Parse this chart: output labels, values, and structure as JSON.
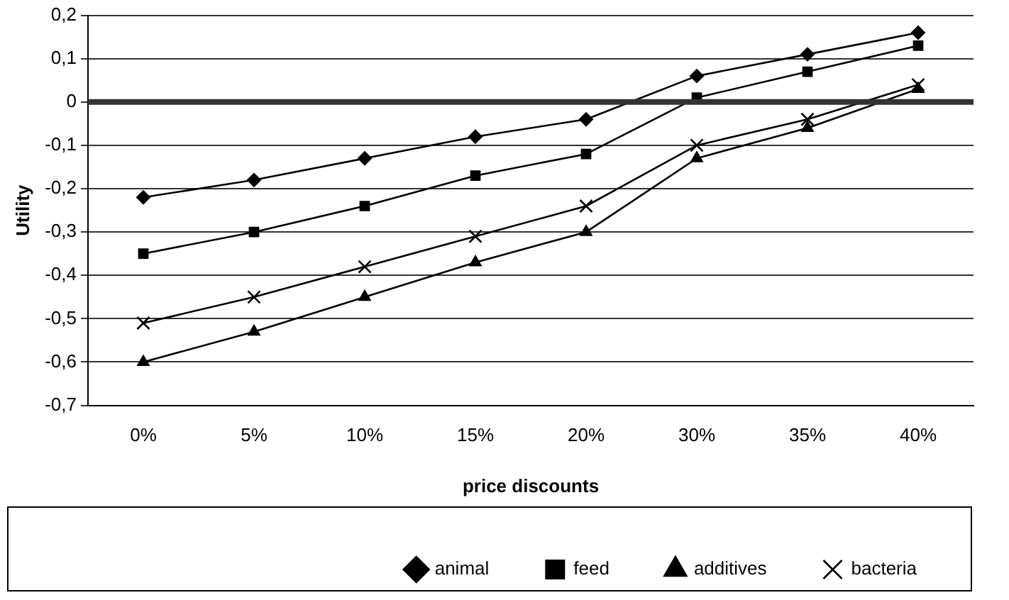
{
  "chart_data": {
    "type": "line",
    "xlabel": "price discounts",
    "ylabel": "Utility",
    "categories": [
      "0%",
      "5%",
      "10%",
      "15%",
      "20%",
      "30%",
      "35%",
      "40%"
    ],
    "series": [
      {
        "name": "animal",
        "color": "#000000",
        "marker": "diamond",
        "values": [
          -0.22,
          -0.18,
          -0.13,
          -0.08,
          -0.04,
          0.06,
          0.11,
          0.16
        ]
      },
      {
        "name": "feed",
        "color": "#000000",
        "marker": "square",
        "values": [
          -0.35,
          -0.3,
          -0.24,
          -0.17,
          -0.12,
          0.01,
          0.07,
          0.13
        ]
      },
      {
        "name": "additives",
        "color": "#000000",
        "marker": "triangle",
        "values": [
          -0.6,
          -0.53,
          -0.45,
          -0.37,
          -0.3,
          -0.13,
          -0.06,
          0.03
        ]
      },
      {
        "name": "bacteria",
        "color": "#000000",
        "marker": "cross",
        "values": [
          -0.51,
          -0.45,
          -0.38,
          -0.31,
          -0.24,
          -0.1,
          -0.04,
          0.04
        ]
      }
    ],
    "ylim": [
      -0.7,
      0.2
    ],
    "yticks": [
      {
        "value": -0.7,
        "label": "-0,7"
      },
      {
        "value": -0.6,
        "label": "-0,6"
      },
      {
        "value": -0.5,
        "label": "-0,5"
      },
      {
        "value": -0.4,
        "label": "-0,4"
      },
      {
        "value": -0.3,
        "label": "-0,3"
      },
      {
        "value": -0.2,
        "label": "-0,2"
      },
      {
        "value": -0.1,
        "label": "-0,1"
      },
      {
        "value": 0,
        "label": "0"
      },
      {
        "value": 0.1,
        "label": "0,1"
      },
      {
        "value": 0.2,
        "label": "0,2"
      }
    ],
    "ref_lines": [
      {
        "axis": "y",
        "value": 0,
        "color": "#333333"
      }
    ],
    "grid": "y",
    "legend": "bottom",
    "line_style": "solid"
  }
}
